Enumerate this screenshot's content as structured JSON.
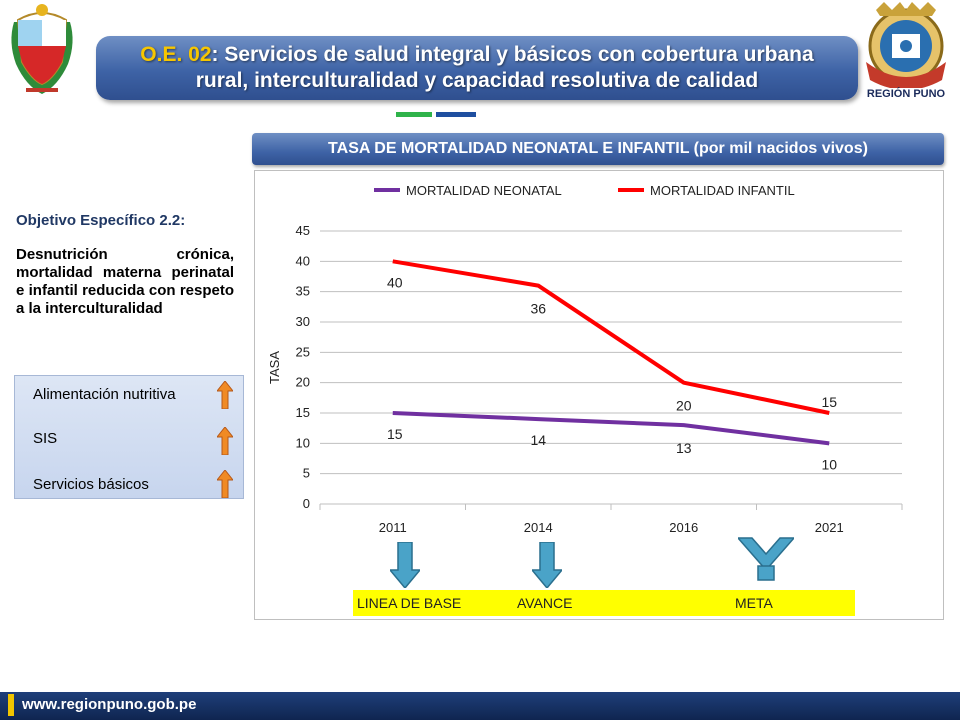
{
  "header": {
    "code": "O.E. 02",
    "title_line1": ": Servicios de salud integral  y básicos  con cobertura urbana",
    "title_line2": "rural, interculturalidad y capacidad resolutiva de calidad",
    "region_label": "REGIÓN PUNO"
  },
  "chart_header": {
    "title": "TASA DE MORTALIDAD NEONATAL E INFANTIL",
    "subtitle": "(por mil nacidos vivos)"
  },
  "left_panel": {
    "objective_title": "Objetivo Específico 2.2:",
    "objective_text": "Desnutrición crónica, mortalidad materna perinatal e infantil reducida con respeto a la interculturalidad",
    "items": [
      "Alimentación nutritiva",
      "SIS",
      "Servicios básicos"
    ]
  },
  "chart_data": {
    "type": "line",
    "categories": [
      "2011",
      "2014",
      "2016",
      "2021"
    ],
    "series": [
      {
        "name": "MORTALIDAD NEONATAL",
        "values": [
          15,
          14,
          13,
          10
        ],
        "color": "#7030a0"
      },
      {
        "name": "MORTALIDAD INFANTIL",
        "values": [
          40,
          36,
          20,
          15
        ],
        "color": "#ff0000"
      }
    ],
    "ylabel": "TASA",
    "ylim": [
      0,
      45
    ],
    "yticks": [
      0,
      5,
      10,
      15,
      20,
      25,
      30,
      35,
      40,
      45
    ],
    "grid": true,
    "legend": "top"
  },
  "timeline": {
    "labels": [
      "LINEA DE BASE",
      "AVANCE",
      "META"
    ]
  },
  "footer": {
    "url": "www.regionpuno.gob.pe"
  },
  "colors": {
    "banner": "#3e63a6",
    "accent_yellow": "#f7c600",
    "neonatal": "#7030a0",
    "infantil": "#ff0000",
    "timeline_bg": "#ffff00"
  }
}
